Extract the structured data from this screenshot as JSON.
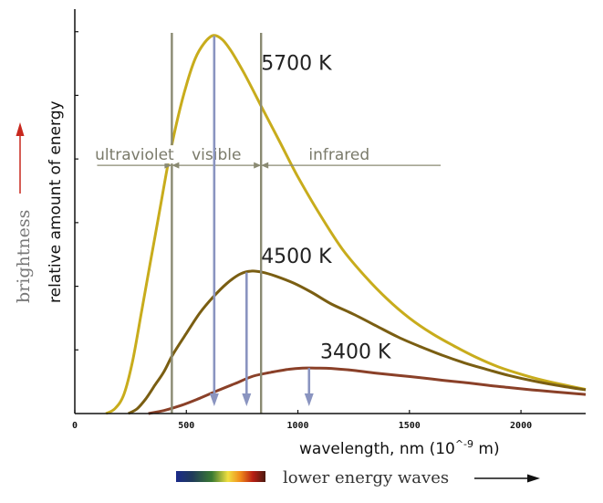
{
  "chart_data": {
    "type": "line",
    "xlabel": "wavelength, nm (10",
    "xlabel_exp": "^-9",
    "xlabel_tail": " m)",
    "ylabel": "relative amount of energy",
    "side_label": "brightness",
    "bottom_label": "lower energy waves",
    "xlim": [
      0,
      2290
    ],
    "xticks": [
      0,
      500,
      1000,
      1500,
      2000
    ],
    "xtick_labels": [
      "0",
      "500",
      "1000",
      "1500",
      "2000"
    ],
    "ylim": [
      0,
      1.04
    ],
    "yticks": [
      0.1667,
      0.3333,
      0.5,
      0.6667,
      0.8333,
      1.0
    ],
    "grid": false,
    "band_lines": [
      435,
      835
    ],
    "bands": [
      {
        "label": "ultraviolet",
        "from": 100,
        "to": 435,
        "y": 0.65
      },
      {
        "label": "visible",
        "from": 435,
        "to": 835,
        "y": 0.65
      },
      {
        "label": "infrared",
        "from": 835,
        "to": 1640,
        "y": 0.65
      }
    ],
    "series": [
      {
        "name": "5700 K",
        "color": "#c8ac1c",
        "x": [
          140,
          180,
          220,
          260,
          300,
          340,
          380,
          420,
          460,
          500,
          540,
          580,
          620,
          660,
          700,
          760,
          840,
          920,
          1000,
          1100,
          1200,
          1300,
          1400,
          1500,
          1600,
          1700,
          1800,
          1900,
          2000,
          2100,
          2200,
          2290
        ],
        "y": [
          0.0,
          0.013,
          0.05,
          0.14,
          0.27,
          0.4,
          0.53,
          0.66,
          0.77,
          0.86,
          0.93,
          0.97,
          0.99,
          0.98,
          0.95,
          0.89,
          0.8,
          0.71,
          0.62,
          0.52,
          0.43,
          0.36,
          0.3,
          0.25,
          0.21,
          0.177,
          0.147,
          0.122,
          0.103,
          0.087,
          0.074,
          0.063
        ],
        "peak_x": 625,
        "label_at": [
          835,
          0.9
        ]
      },
      {
        "name": "4500 K",
        "color": "#7a5e12",
        "x": [
          240,
          280,
          320,
          360,
          400,
          440,
          500,
          560,
          620,
          680,
          740,
          790,
          840,
          900,
          980,
          1060,
          1150,
          1250,
          1350,
          1450,
          1550,
          1650,
          1750,
          1850,
          1950,
          2050,
          2150,
          2290
        ],
        "y": [
          0.0,
          0.013,
          0.04,
          0.075,
          0.11,
          0.155,
          0.21,
          0.263,
          0.305,
          0.34,
          0.365,
          0.373,
          0.37,
          0.36,
          0.342,
          0.318,
          0.287,
          0.26,
          0.23,
          0.2,
          0.175,
          0.152,
          0.132,
          0.115,
          0.099,
          0.086,
          0.075,
          0.062
        ],
        "peak_x": 770,
        "label_at": [
          835,
          0.395
        ]
      },
      {
        "name": "3400 K",
        "color": "#8a4028",
        "x": [
          330,
          400,
          480,
          560,
          640,
          720,
          800,
          880,
          960,
          1020,
          1080,
          1150,
          1250,
          1350,
          1450,
          1550,
          1650,
          1750,
          1850,
          1950,
          2050,
          2150,
          2290
        ],
        "y": [
          0.0,
          0.008,
          0.022,
          0.04,
          0.06,
          0.079,
          0.098,
          0.108,
          0.116,
          0.119,
          0.119,
          0.118,
          0.113,
          0.106,
          0.1,
          0.094,
          0.087,
          0.081,
          0.074,
          0.068,
          0.062,
          0.057,
          0.05
        ],
        "peak_x": 1050,
        "label_at": [
          1100,
          0.145
        ]
      }
    ],
    "peak_arrow_color": "#8a94c0",
    "arrow_colors": {
      "brightness": "#c8281e",
      "energy": "#111111"
    }
  }
}
